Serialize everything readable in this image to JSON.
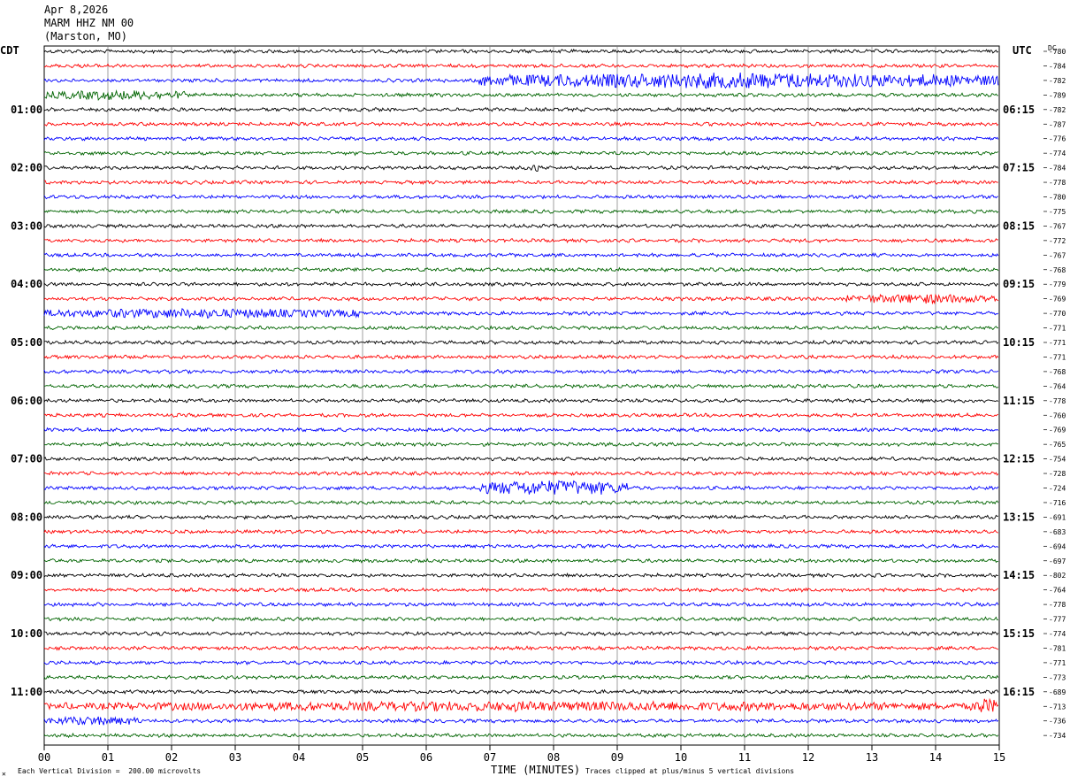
{
  "header": {
    "date": "Apr 8,2026",
    "station": "MARM HHZ NM 00",
    "location": "(Marston, MO)"
  },
  "left_axis_label": "CDT",
  "right_axis_label": "UTC",
  "dc_label": "DC",
  "footer": {
    "scale_note": "Each Vertical Division =  200.00 microvolts",
    "x_axis_label": "TIME (MINUTES)",
    "clip_note": "Traces clipped at plus/minus 5 vertical divisions",
    "corner_mark": "✕"
  },
  "colors": {
    "trace_cycle": [
      "#000000",
      "#ff0000",
      "#0000ff",
      "#006400"
    ],
    "grid": "#000000",
    "background": "#ffffff"
  },
  "chart_data": {
    "type": "line",
    "title": "",
    "xlabel": "TIME (MINUTES)",
    "ylabel": "",
    "x_range": [
      0,
      15
    ],
    "x_tick_labels": [
      "00",
      "01",
      "02",
      "03",
      "04",
      "05",
      "06",
      "07",
      "08",
      "09",
      "10",
      "11",
      "12",
      "13",
      "14",
      "15"
    ],
    "trace_count": 48,
    "left_hour_labels": [
      "01:00",
      "02:00",
      "03:00",
      "04:00",
      "05:00",
      "06:00",
      "07:00",
      "08:00",
      "09:00",
      "10:00",
      "11:00"
    ],
    "right_hour_labels": [
      "06:15",
      "07:15",
      "08:15",
      "09:15",
      "10:15",
      "11:15",
      "12:15",
      "13:15",
      "14:15",
      "15:15",
      "16:15"
    ],
    "hour_label_trace_start": 4,
    "hour_label_trace_step": 4,
    "dc_offsets": [
      "-780",
      "-784",
      "-782",
      "-789",
      "-782",
      "-787",
      "-776",
      "-774",
      "-784",
      "-778",
      "-780",
      "-775",
      "-767",
      "-772",
      "-767",
      "-768",
      "-779",
      "-769",
      "-770",
      "-771",
      "-771",
      "-771",
      "-768",
      "-764",
      "-778",
      "-760",
      "-769",
      "-765",
      "-754",
      "-728",
      "-724",
      "-716",
      "-691",
      "-683",
      "-694",
      "-697",
      "-802",
      "-764",
      "-778",
      "-777",
      "-774",
      "-781",
      "-771",
      "-773",
      "-689",
      "-713",
      "-736",
      "-734"
    ],
    "events": [
      {
        "trace": 2,
        "x_start": 6.8,
        "x_end": 15.0,
        "amplitude": "high"
      },
      {
        "trace": 3,
        "x_start": 0.0,
        "x_end": 2.2,
        "amplitude": "medium"
      },
      {
        "trace": 8,
        "x_start": 7.6,
        "x_end": 7.8,
        "amplitude": "medium"
      },
      {
        "trace": 17,
        "x_start": 12.6,
        "x_end": 15.0,
        "amplitude": "medium"
      },
      {
        "trace": 18,
        "x_start": 0.0,
        "x_end": 5.0,
        "amplitude": "medium"
      },
      {
        "trace": 30,
        "x_start": 6.8,
        "x_end": 9.2,
        "amplitude": "high"
      },
      {
        "trace": 45,
        "x_start": 0.0,
        "x_end": 15.0,
        "amplitude": "medium"
      },
      {
        "trace": 45,
        "x_start": 14.6,
        "x_end": 15.0,
        "amplitude": "high"
      },
      {
        "trace": 46,
        "x_start": 0.0,
        "x_end": 1.5,
        "amplitude": "medium"
      }
    ]
  }
}
